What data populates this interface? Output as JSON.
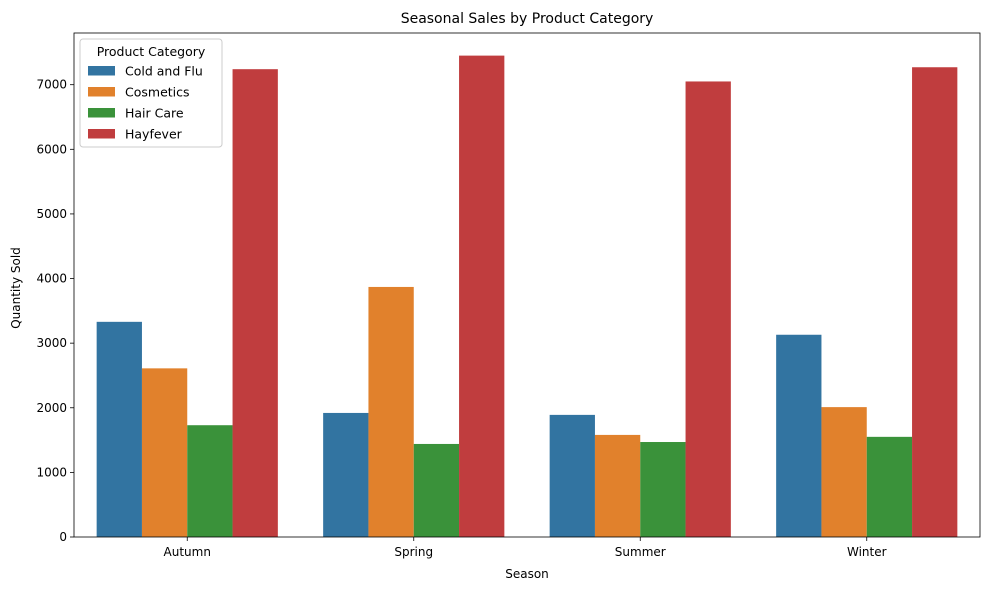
{
  "chart_data": {
    "type": "bar",
    "title": "Seasonal Sales by Product Category",
    "xlabel": "Season",
    "ylabel": "Quantity Sold",
    "categories": [
      "Autumn",
      "Spring",
      "Summer",
      "Winter"
    ],
    "ylim": [
      0,
      7800
    ],
    "yticks": [
      0,
      1000,
      2000,
      3000,
      4000,
      5000,
      6000,
      7000
    ],
    "grid": false,
    "legend": {
      "title": "Product Category",
      "placement": "top-left"
    },
    "series": [
      {
        "name": "Cold and Flu",
        "color": "#3274a1",
        "values": [
          3330,
          1920,
          1890,
          3130
        ]
      },
      {
        "name": "Cosmetics",
        "color": "#e1812c",
        "values": [
          2610,
          3870,
          1580,
          2010
        ]
      },
      {
        "name": "Hair Care",
        "color": "#3a923a",
        "values": [
          1730,
          1440,
          1470,
          1550
        ]
      },
      {
        "name": "Hayfever",
        "color": "#c03d3e",
        "values": [
          7240,
          7450,
          7050,
          7270
        ]
      }
    ]
  }
}
